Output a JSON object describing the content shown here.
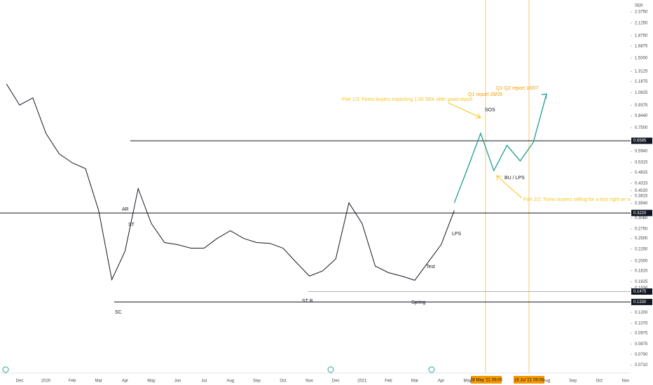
{
  "chart_data": {
    "type": "line",
    "currency": "SEK",
    "categories": [
      null,
      "Dec",
      null,
      "2020",
      null,
      "Feb",
      null,
      "Mar",
      null,
      "Apr",
      null,
      "May",
      null,
      "Jun",
      null,
      "Jul",
      null,
      "Aug",
      null,
      "Sep",
      null,
      "Oct",
      null,
      "Nov",
      null,
      "Dec",
      null,
      "2021",
      null,
      "Feb",
      null,
      "Mar",
      null,
      "Apr",
      null,
      "May",
      null,
      null,
      null,
      null,
      null,
      "Aug",
      null,
      "Sep",
      null,
      "Oct",
      null,
      "Nov"
    ],
    "series": [
      {
        "color": "#131722",
        "values": [
          1.16,
          0.94,
          1.01,
          0.71,
          0.58,
          0.53,
          0.5,
          0.33,
          0.166,
          0.22,
          0.41,
          0.29,
          0.24,
          0.235,
          0.227,
          0.227,
          0.25,
          0.27,
          0.25,
          0.24,
          0.238,
          0.227,
          0.197,
          0.172,
          0.181,
          0.204,
          0.356,
          0.29,
          0.19,
          0.178,
          0.172,
          0.165,
          0.197,
          0.235,
          0.33,
          null,
          null,
          null,
          null,
          null,
          null,
          null,
          null,
          null,
          null,
          null,
          null,
          null
        ]
      },
      {
        "color": "#1f9e8e",
        "values": [
          null,
          null,
          null,
          null,
          null,
          null,
          null,
          null,
          null,
          null,
          null,
          null,
          null,
          null,
          null,
          null,
          null,
          null,
          null,
          null,
          null,
          null,
          null,
          null,
          null,
          null,
          null,
          null,
          null,
          null,
          null,
          null,
          null,
          null,
          0.356,
          0.5,
          0.71,
          0.49,
          0.63,
          0.54,
          0.65,
          1.05,
          null,
          null,
          null,
          null,
          null,
          null
        ]
      }
    ],
    "log_scale": true,
    "ylim": [
      0.067,
      2.67
    ],
    "yticks": [
      {
        "value": 2.375,
        "label": "2.3750"
      },
      {
        "value": 2.125,
        "label": "2.1250"
      },
      {
        "value": 1.875,
        "label": "1.8750"
      },
      1.6875,
      {
        "value": 1.5,
        "label": "1.5000"
      },
      1.3125,
      1.1875,
      1.0625,
      0.9375,
      {
        "value": 0.844,
        "label": "0.8440"
      },
      {
        "value": 0.75,
        "label": "0.7500"
      },
      {
        "value": 0.594,
        "label": "0.5940"
      },
      0.5315,
      0.4815,
      0.4315,
      {
        "value": 0.402,
        "label": "0.4020"
      },
      0.3815,
      {
        "value": 0.354,
        "label": "0.3540"
      },
      {
        "value": 0.306,
        "label": "0.3060"
      },
      {
        "value": 0.275,
        "label": "0.2750"
      },
      {
        "value": 0.25,
        "label": "0.2500"
      },
      {
        "value": 0.225,
        "label": "0.2250"
      },
      {
        "value": 0.2,
        "label": "0.2000"
      },
      0.1815,
      0.1625,
      {
        "value": 0.153,
        "label": "0.1530"
      },
      {
        "value": 0.12,
        "label": "0.1200"
      },
      0.1075,
      0.0975,
      0.0875,
      {
        "value": 0.079,
        "label": "0.0790"
      },
      {
        "value": 0.071,
        "label": "0.0710"
      }
    ],
    "levels": [
      {
        "value": 0.6595,
        "label": "0.6595"
      },
      {
        "value": 0.322,
        "label": "0.3220"
      },
      0.1475,
      {
        "value": 0.133,
        "label": "0.1330"
      }
    ],
    "annotations": [
      "Part 1/3: Fomo buyers expecting 1.00 SEK after good report",
      "Q1 report 28/05",
      "Q1-Q2 report 16/07",
      "SOS",
      "BU / LPS",
      "Part 2/2: Fomo buyers selling for a loss right on support",
      "AR",
      "ST",
      "SC",
      "ST B",
      "Spring",
      "Test",
      "LPS"
    ],
    "date_markers": [
      "28 May '21  09:00",
      "16 Jul '21  09:00"
    ]
  }
}
